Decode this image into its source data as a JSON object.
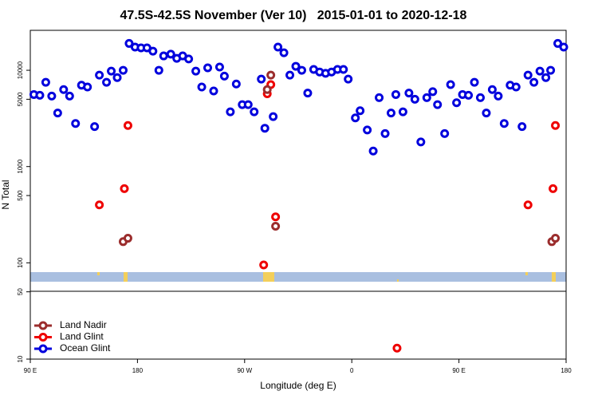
{
  "chart_data": {
    "type": "scatter",
    "title": "47.5S-42.5S November (Ver 10)   2015-01-01 to 2020-12-18",
    "x_label": "Longitude (deg E)",
    "y_label": "N Total",
    "log_y": true,
    "legend": "bottom-left",
    "xlim": [
      90,
      540
    ],
    "xticks": [
      {
        "value": 90,
        "label": "90 E"
      },
      {
        "value": 180,
        "label": "180"
      },
      {
        "value": 270,
        "label": "90 W"
      },
      {
        "value": 360,
        "label": "0"
      },
      {
        "value": 450,
        "label": "90 E"
      },
      {
        "value": 540,
        "label": "180"
      }
    ],
    "ylim": [
      10,
      26000
    ],
    "yticks": [
      10,
      50,
      100,
      500,
      1000,
      5000,
      10000
    ],
    "series": [
      {
        "name": "Land Nadir",
        "color": "#9b2d2d",
        "x": [
          168,
          172,
          289,
          292,
          296,
          528,
          531
        ],
        "values": [
          166,
          180,
          6300,
          8900,
          240,
          166,
          180
        ]
      },
      {
        "name": "Land Glint",
        "color": "#ee0000",
        "x": [
          148,
          169,
          172,
          286,
          289,
          292,
          296,
          398,
          508,
          529,
          531
        ],
        "values": [
          400,
          590,
          2670,
          95,
          5700,
          7100,
          300,
          13,
          400,
          590,
          2670
        ]
      },
      {
        "name": "Ocean Glint",
        "color": "#0000dd",
        "x": [
          93,
          98,
          103,
          108,
          113,
          118,
          123,
          128,
          133,
          138,
          144,
          148,
          154,
          158,
          163,
          168,
          173,
          178,
          183,
          188,
          193,
          198,
          202,
          208,
          213,
          218,
          223,
          229,
          234,
          239,
          244,
          249,
          253,
          258,
          263,
          268,
          273,
          278,
          284,
          287,
          294,
          298,
          303,
          308,
          313,
          318,
          323,
          328,
          333,
          338,
          343,
          348,
          353,
          357,
          363,
          367,
          373,
          378,
          383,
          388,
          393,
          397,
          403,
          408,
          413,
          418,
          423,
          428,
          432,
          438,
          443,
          448,
          453,
          458,
          463,
          468,
          473,
          478,
          483,
          488,
          493,
          498,
          503,
          508,
          513,
          518,
          523,
          527,
          533,
          538
        ],
        "values": [
          5600,
          5500,
          7500,
          5400,
          3600,
          6300,
          5400,
          2800,
          7000,
          6700,
          2600,
          8900,
          7500,
          9800,
          8400,
          10000,
          19000,
          17400,
          17100,
          17100,
          15800,
          10000,
          14100,
          14700,
          13300,
          14100,
          13100,
          9800,
          6700,
          10600,
          6100,
          10800,
          8700,
          3700,
          7200,
          4400,
          4400,
          3700,
          8100,
          2500,
          3300,
          17400,
          15200,
          8900,
          11000,
          10000,
          5800,
          10200,
          9600,
          9300,
          9600,
          10200,
          10200,
          8100,
          3200,
          3800,
          2400,
          1450,
          5200,
          2200,
          3600,
          5600,
          3700,
          5800,
          5000,
          1800,
          5200,
          6000,
          4400,
          2200,
          7100,
          4600,
          5600,
          5500,
          7500,
          5200,
          3600,
          6300,
          5400,
          2800,
          7000,
          6700,
          2600,
          8900,
          7500,
          9800,
          8400,
          10000,
          19000,
          17400
        ]
      }
    ]
  }
}
